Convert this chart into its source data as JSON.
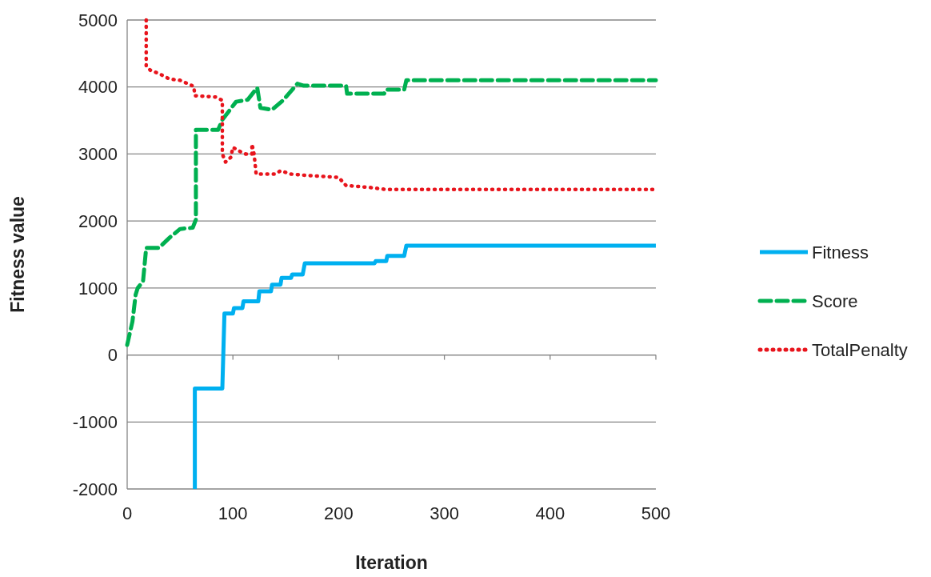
{
  "chart_data": {
    "type": "line",
    "xlabel": "Iteration",
    "ylabel": "Fitness value",
    "xlim": [
      0,
      500
    ],
    "xticks": [
      0,
      100,
      200,
      300,
      400,
      500
    ],
    "ylim": [
      -2000,
      5000
    ],
    "yticks": [
      -2000,
      -1000,
      0,
      1000,
      2000,
      3000,
      4000,
      5000
    ],
    "grid": "y",
    "legend": "right",
    "marker": "none",
    "series": [
      {
        "name": "Fitness",
        "color": "#00b0f0",
        "line_style": "solid",
        "x": [
          64,
          64,
          90,
          92,
          100,
          101,
          109,
          110,
          124,
          125,
          136,
          137,
          145,
          146,
          155,
          156,
          166,
          168,
          234,
          235,
          245,
          246,
          262,
          264,
          500
        ],
        "values": [
          -2000,
          -500,
          -500,
          620,
          620,
          700,
          700,
          800,
          800,
          950,
          950,
          1050,
          1050,
          1150,
          1150,
          1200,
          1200,
          1370,
          1370,
          1400,
          1400,
          1480,
          1480,
          1630,
          1630
        ]
      },
      {
        "name": "Score",
        "color": "#00b050",
        "line_style": "dashed",
        "x": [
          0,
          5,
          8,
          10,
          15,
          18,
          30,
          40,
          50,
          62,
          65,
          65,
          86,
          90,
          103,
          114,
          123,
          126,
          137,
          148,
          161,
          167,
          207,
          208,
          243,
          245,
          262,
          264,
          500
        ],
        "values": [
          150,
          500,
          900,
          1000,
          1100,
          1600,
          1600,
          1750,
          1880,
          1900,
          2020,
          3360,
          3360,
          3510,
          3780,
          3810,
          3990,
          3690,
          3660,
          3810,
          4050,
          4020,
          4020,
          3900,
          3900,
          3960,
          3960,
          4100,
          4100
        ]
      },
      {
        "name": "TotalPenalty",
        "color": "#e8141c",
        "line_style": "dotted",
        "x": [
          18,
          18,
          22,
          30,
          40,
          50,
          63,
          64,
          84,
          90,
          90,
          93,
          98,
          100,
          105,
          112,
          118,
          118,
          120,
          122,
          140,
          145,
          155,
          170,
          200,
          207,
          230,
          245,
          500
        ],
        "values": [
          5000,
          4310,
          4250,
          4200,
          4120,
          4100,
          4010,
          3870,
          3850,
          3800,
          3000,
          2880,
          2950,
          3100,
          3050,
          3000,
          3000,
          3150,
          3000,
          2700,
          2700,
          2750,
          2700,
          2680,
          2650,
          2530,
          2500,
          2470,
          2470
        ]
      }
    ]
  }
}
